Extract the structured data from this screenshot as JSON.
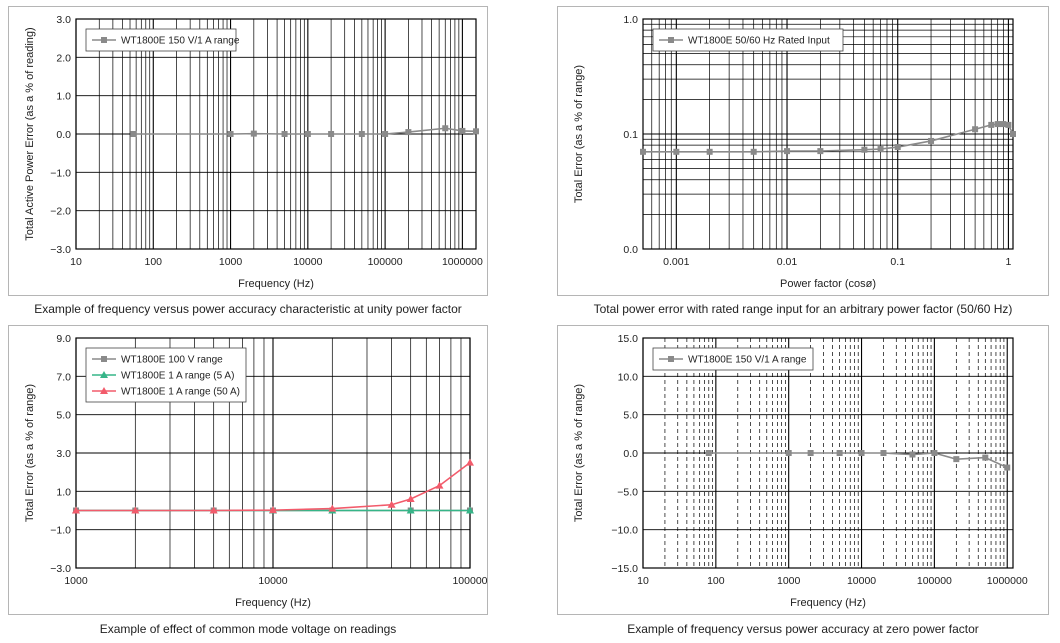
{
  "colors": {
    "gray": "#8a8a8a",
    "green": "#36b588",
    "red": "#f25b6b",
    "grid": "#000000"
  },
  "charts": [
    {
      "id": "c1",
      "type": "line",
      "xscale": "log",
      "xlim": [
        10,
        1500000
      ],
      "ylim": [
        -3,
        3
      ],
      "x_ticks": [
        10,
        100,
        1000,
        10000,
        100000,
        1000000
      ],
      "x_tick_labels": [
        "10",
        "100",
        "1000",
        "10000",
        "100000",
        "1000000"
      ],
      "y_ticks": [
        -3,
        -2,
        -1,
        0,
        1,
        2,
        3
      ],
      "y_tick_labels": [
        "−3.0",
        "−2.0",
        "−1.0",
        "0.0",
        "1.0",
        "2.0",
        "3.0"
      ],
      "xlabel": "Frequency (Hz)",
      "ylabel": "Total Active Power Error (as a % of reading)",
      "caption": "Example of frequency versus power accuracy characteristic at unity power factor",
      "legend_position": "top-left",
      "grid": true,
      "series": [
        {
          "name": "WT1800E 150 V/1 A range",
          "color": "gray",
          "marker": "square",
          "x": [
            55,
            1000,
            2000,
            5000,
            10000,
            20000,
            50000,
            100000,
            200000,
            600000,
            1000000,
            1500000
          ],
          "y": [
            0,
            0,
            0.01,
            0,
            0,
            0,
            0,
            0,
            0.05,
            0.15,
            0.08,
            0.07
          ]
        }
      ]
    },
    {
      "id": "c2",
      "type": "line",
      "xscale": "log",
      "yscale": "log",
      "xlim": [
        0.0005,
        1.1
      ],
      "ylim": [
        0.01,
        1.0
      ],
      "x_ticks": [
        0.001,
        0.01,
        0.1,
        1
      ],
      "x_tick_labels": [
        "0.001",
        "0.01",
        "0.1",
        "1"
      ],
      "y_ticks": [
        0.01,
        0.1,
        1.0
      ],
      "y_tick_labels": [
        "0.0",
        "0.1",
        "1.0"
      ],
      "xlabel": "Power factor (cosø)",
      "ylabel": "Total Error (as a % of range)",
      "caption": "Total power error with rated range input for an arbitrary power factor (50/60 Hz)",
      "legend_position": "top-left",
      "grid": true,
      "series": [
        {
          "name": "WT1800E 50/60 Hz Rated Input",
          "color": "gray",
          "marker": "square",
          "x": [
            0.0005,
            0.001,
            0.002,
            0.005,
            0.01,
            0.02,
            0.05,
            0.07,
            0.1,
            0.2,
            0.5,
            0.7,
            0.8,
            0.9,
            1.0,
            1.1
          ],
          "y": [
            0.07,
            0.07,
            0.07,
            0.07,
            0.071,
            0.071,
            0.073,
            0.074,
            0.077,
            0.087,
            0.11,
            0.12,
            0.122,
            0.122,
            0.12,
            0.1
          ]
        }
      ]
    },
    {
      "id": "c3",
      "type": "line",
      "xscale": "log",
      "xlim": [
        1000,
        100000
      ],
      "ylim": [
        -3,
        9
      ],
      "x_ticks": [
        1000,
        10000,
        100000
      ],
      "x_tick_labels": [
        "1000",
        "10000",
        "100000"
      ],
      "y_ticks": [
        -3,
        -1,
        1,
        3,
        5,
        7,
        9
      ],
      "y_tick_labels": [
        "−3.0",
        "−1.0",
        "1.0",
        "3.0",
        "5.0",
        "7.0",
        "9.0"
      ],
      "xlabel": "Frequency (Hz)",
      "ylabel": "Total Error (as a % of range)",
      "caption": "Example of effect of common mode voltage on readings",
      "legend_position": "top-left",
      "grid": true,
      "series": [
        {
          "name": "WT1800E 100 V range",
          "color": "gray",
          "marker": "square",
          "x": [
            1000,
            2000,
            5000,
            10000,
            20000,
            50000,
            100000
          ],
          "y": [
            0,
            0,
            0,
            0,
            0,
            0,
            0
          ]
        },
        {
          "name": "WT1800E 1 A range (5 A)",
          "color": "green",
          "marker": "triangle",
          "x": [
            1000,
            2000,
            5000,
            10000,
            20000,
            50000,
            100000
          ],
          "y": [
            0,
            0,
            0,
            0,
            0,
            0,
            0
          ]
        },
        {
          "name": "WT1800E 1 A range (50 A)",
          "color": "red",
          "marker": "triangle",
          "x": [
            1000,
            2000,
            5000,
            10000,
            20000,
            40000,
            50000,
            70000,
            100000
          ],
          "y": [
            0,
            0,
            0,
            0.02,
            0.1,
            0.3,
            0.6,
            1.3,
            2.5
          ]
        }
      ]
    },
    {
      "id": "c4",
      "type": "line",
      "xscale": "log",
      "xlim": [
        10,
        1200000
      ],
      "ylim": [
        -15,
        15
      ],
      "x_ticks": [
        10,
        100,
        1000,
        10000,
        100000,
        1000000
      ],
      "x_tick_labels": [
        "10",
        "100",
        "1000",
        "10000",
        "100000",
        "1000000"
      ],
      "y_ticks": [
        -15,
        -10,
        -5,
        0,
        5,
        10,
        15
      ],
      "y_tick_labels": [
        "−15.0",
        "−10.0",
        "−5.0",
        "0.0",
        "5.0",
        "10.0",
        "15.0"
      ],
      "xlabel": "Frequency (Hz)",
      "ylabel": "Total Error (as a % of range)",
      "caption": "Example of frequency versus power accuracy at zero power factor",
      "legend_position": "top-left",
      "grid": true,
      "grid_minor_dashed": true,
      "series": [
        {
          "name": "WT1800E 150 V/1 A range",
          "color": "gray",
          "marker": "square",
          "x": [
            80,
            1000,
            2000,
            5000,
            10000,
            20000,
            50000,
            100000,
            200000,
            500000,
            1000000
          ],
          "y": [
            0,
            0,
            0,
            0,
            0,
            0,
            -0.2,
            0,
            -0.8,
            -0.6,
            -1.9
          ]
        }
      ]
    }
  ]
}
